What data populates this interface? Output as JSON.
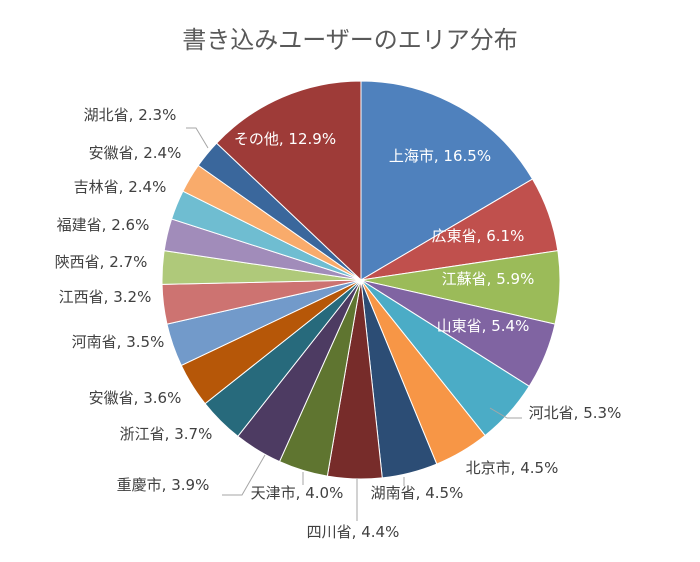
{
  "chart_data": {
    "type": "pie",
    "title": "書き込みユーザーのエリア分布",
    "start_angle_deg": 0,
    "direction": "clockwise",
    "slices": [
      {
        "label": "上海市",
        "value": 16.5,
        "color": "#4F81BD"
      },
      {
        "label": "広東省",
        "value": 6.1,
        "color": "#C0504D"
      },
      {
        "label": "江蘇省",
        "value": 5.9,
        "color": "#9BBB59"
      },
      {
        "label": "山東省",
        "value": 5.4,
        "color": "#8064A2"
      },
      {
        "label": "河北省",
        "value": 5.3,
        "color": "#4BACC6"
      },
      {
        "label": "北京市",
        "value": 4.5,
        "color": "#F79646"
      },
      {
        "label": "湖南省",
        "value": 4.5,
        "color": "#2C4D75"
      },
      {
        "label": "四川省",
        "value": 4.4,
        "color": "#772C2A"
      },
      {
        "label": "天津市",
        "value": 4.0,
        "color": "#5F7530"
      },
      {
        "label": "重慶市",
        "value": 3.9,
        "color": "#4D3B62"
      },
      {
        "label": "浙江省",
        "value": 3.7,
        "color": "#276A7C"
      },
      {
        "label": "安徽省",
        "value": 3.6,
        "color": "#B65708"
      },
      {
        "label": "河南省",
        "value": 3.5,
        "color": "#729ACA"
      },
      {
        "label": "江西省",
        "value": 3.2,
        "color": "#CD7371"
      },
      {
        "label": "陝西省",
        "value": 2.7,
        "color": "#AFC97A"
      },
      {
        "label": "福建省",
        "value": 2.6,
        "color": "#A18CBA"
      },
      {
        "label": "吉林省",
        "value": 2.4,
        "color": "#6FBDD1"
      },
      {
        "label": "安徽省",
        "value": 2.4,
        "color": "#F9AB6B"
      },
      {
        "label": "湖北省",
        "value": 2.3,
        "color": "#3A679C"
      },
      {
        "label": "その他",
        "value": 12.9,
        "color": "#9E3B38"
      }
    ],
    "data_label_format": "{label}, {value}%",
    "legend": "none"
  }
}
